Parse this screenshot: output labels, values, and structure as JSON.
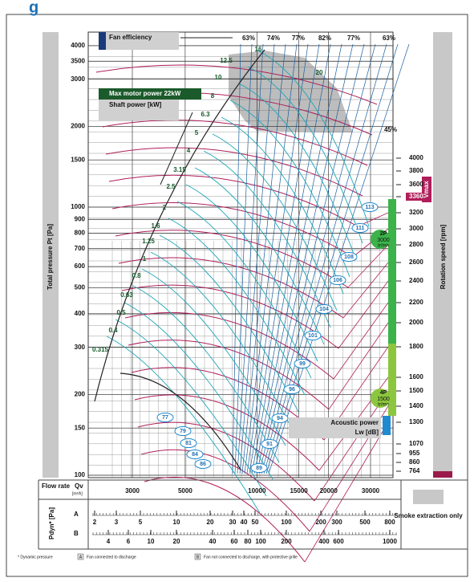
{
  "header": {
    "title": "g"
  },
  "axes": {
    "left_label": "Total pressure Pt [Pa]",
    "right_label": "Rotation speed [rpm]",
    "pressure_ticks": [
      4000,
      3500,
      3000,
      2000,
      1500,
      1000,
      900,
      800,
      700,
      600,
      500,
      400,
      300,
      200,
      150,
      100
    ],
    "speed_ticks": [
      4000,
      3800,
      3600,
      3360,
      3200,
      3000,
      2800,
      2600,
      2400,
      2200,
      2000,
      1800,
      1600,
      1500,
      1400,
      1300,
      1070,
      955,
      860,
      764
    ],
    "flow_label": "Flow rate",
    "flow_unit": "Qv",
    "flow_unit_sub": "[m³/h]",
    "flow_ticks": [
      3000,
      5000,
      10000,
      15000,
      20000,
      30000
    ]
  },
  "labels": {
    "fan_efficiency": "Fan efficiency",
    "max_motor": "Max motor power 22kW",
    "shaft_power": "Shaft power [kW]",
    "acoustic": "Acoustic power",
    "acoustic_unit": "Lw [dB]",
    "vmax": "Vmax",
    "p2": "2P",
    "p2_speed": "3000",
    "p2_unit": "tr/mn",
    "p4": "4P",
    "p4_speed": "1500",
    "p4_unit": "tr/mn"
  },
  "power": [
    "16",
    "12.5",
    "10",
    "8",
    "6.3",
    "5",
    "4",
    "3.15",
    "2.5",
    "2",
    "1.6",
    "1.25",
    "1",
    "0.8",
    "0.63",
    "0.5",
    "0.4",
    "0.315",
    "20"
  ],
  "efficiency": [
    "63%",
    "74%",
    "77%",
    "82%",
    "77%",
    "63%",
    "45%"
  ],
  "acoustic_db": [
    "113",
    "111",
    "108",
    "106",
    "104",
    "101",
    "99",
    "96",
    "94",
    "91",
    "89",
    "86",
    "84",
    "81",
    "79",
    "77"
  ],
  "dynamic": {
    "label": "Pdyn* [Pa]",
    "row_a": "A",
    "row_b": "B",
    "a_ticks": [
      2,
      3,
      5,
      10,
      20,
      30,
      40,
      50,
      100,
      200,
      300,
      500,
      800
    ],
    "b_ticks": [
      4,
      6,
      10,
      20,
      40,
      60,
      80,
      100,
      200,
      400,
      600,
      1000
    ]
  },
  "legend": {
    "smoke": "Smoke extraction only"
  },
  "footnotes": {
    "dynamic": "* Dynamic pressure",
    "a_mark": "A",
    "a": "Fan connected to discharge",
    "b_mark": "B",
    "b": "Fan not connected to discharge, with protective grille"
  }
}
